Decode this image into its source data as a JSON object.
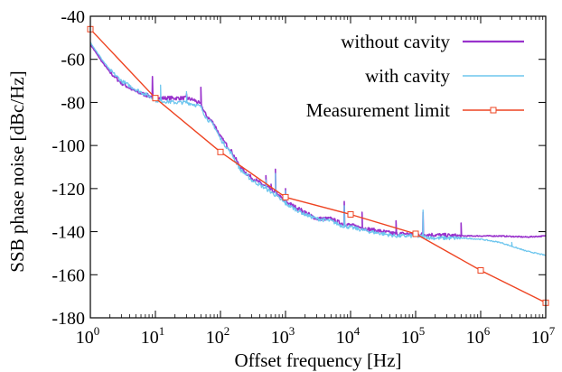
{
  "chart_data": {
    "type": "line",
    "title": "",
    "xlabel": "Offset frequency [Hz]",
    "ylabel": "SSB phase noise [dBc/Hz]",
    "x_scale": "log",
    "xlim": [
      1,
      10000000
    ],
    "ylim": [
      -180,
      -40
    ],
    "grid": false,
    "legend_position": "top-right",
    "x_ticks": [
      {
        "base": "10",
        "exp": "0",
        "value": 1
      },
      {
        "base": "10",
        "exp": "1",
        "value": 10
      },
      {
        "base": "10",
        "exp": "2",
        "value": 100
      },
      {
        "base": "10",
        "exp": "3",
        "value": 1000
      },
      {
        "base": "10",
        "exp": "4",
        "value": 10000
      },
      {
        "base": "10",
        "exp": "5",
        "value": 100000
      },
      {
        "base": "10",
        "exp": "6",
        "value": 1000000
      },
      {
        "base": "10",
        "exp": "7",
        "value": 10000000
      }
    ],
    "y_ticks": [
      "-40",
      "-60",
      "-80",
      "-100",
      "-120",
      "-140",
      "-160",
      "-180"
    ],
    "series": [
      {
        "name": "without cavity",
        "color": "#9932cc",
        "marker": "none",
        "x": [
          1,
          1.5,
          2,
          3,
          5,
          8,
          10,
          20,
          30,
          40,
          50,
          60,
          80,
          100,
          150,
          200,
          300,
          500,
          700,
          1000,
          1500,
          2000,
          3000,
          5000,
          7000,
          10000,
          20000,
          50000,
          100000,
          200000,
          500000,
          1000000,
          2000000,
          5000000,
          10000000
        ],
        "y": [
          -53,
          -61,
          -66,
          -71,
          -75,
          -77,
          -78,
          -78,
          -78,
          -79,
          -81,
          -86,
          -90,
          -96,
          -103,
          -110,
          -115,
          -119,
          -122,
          -126,
          -129,
          -131,
          -134,
          -134,
          -136,
          -137,
          -139,
          -141,
          -141,
          -141.5,
          -142,
          -142,
          -142,
          -142.5,
          -142
        ],
        "spikes": [
          [
            9,
            -68
          ],
          [
            30,
            -76
          ],
          [
            50,
            -73
          ],
          [
            500,
            -114
          ],
          [
            600,
            -118
          ],
          [
            700,
            -111
          ],
          [
            1000,
            -120
          ],
          [
            8000,
            -126
          ],
          [
            15000,
            -131
          ],
          [
            50000,
            -135
          ],
          [
            130000,
            -131
          ],
          [
            500000,
            -136
          ]
        ]
      },
      {
        "name": "with cavity",
        "color": "#6ec6ee",
        "marker": "none",
        "x": [
          1,
          1.5,
          2,
          3,
          5,
          8,
          10,
          20,
          30,
          40,
          50,
          60,
          80,
          100,
          150,
          200,
          300,
          500,
          700,
          1000,
          1500,
          2000,
          3000,
          5000,
          7000,
          10000,
          20000,
          50000,
          100000,
          200000,
          500000,
          1000000,
          2000000,
          5000000,
          10000000
        ],
        "y": [
          -52,
          -60,
          -65,
          -70,
          -74,
          -77,
          -79,
          -80,
          -80,
          -81,
          -82,
          -87,
          -91,
          -97,
          -104,
          -111,
          -116,
          -120,
          -123,
          -127,
          -130,
          -132,
          -134,
          -135,
          -137,
          -138,
          -140,
          -142,
          -142,
          -143,
          -143,
          -143.5,
          -145,
          -149,
          -151
        ],
        "spikes": [
          [
            12,
            -72
          ],
          [
            30,
            -75
          ],
          [
            500,
            -116
          ],
          [
            700,
            -113
          ],
          [
            1000,
            -121
          ],
          [
            8000,
            -128
          ],
          [
            130000,
            -130
          ],
          [
            3000000,
            -145
          ]
        ]
      },
      {
        "name": "Measurement limit",
        "color": "#ee4422",
        "marker": "square",
        "x": [
          1,
          10,
          100,
          1000,
          10000,
          100000,
          1000000,
          10000000
        ],
        "y": [
          -46,
          -78,
          -103,
          -124,
          -132,
          -141,
          -158,
          -173
        ]
      }
    ]
  }
}
